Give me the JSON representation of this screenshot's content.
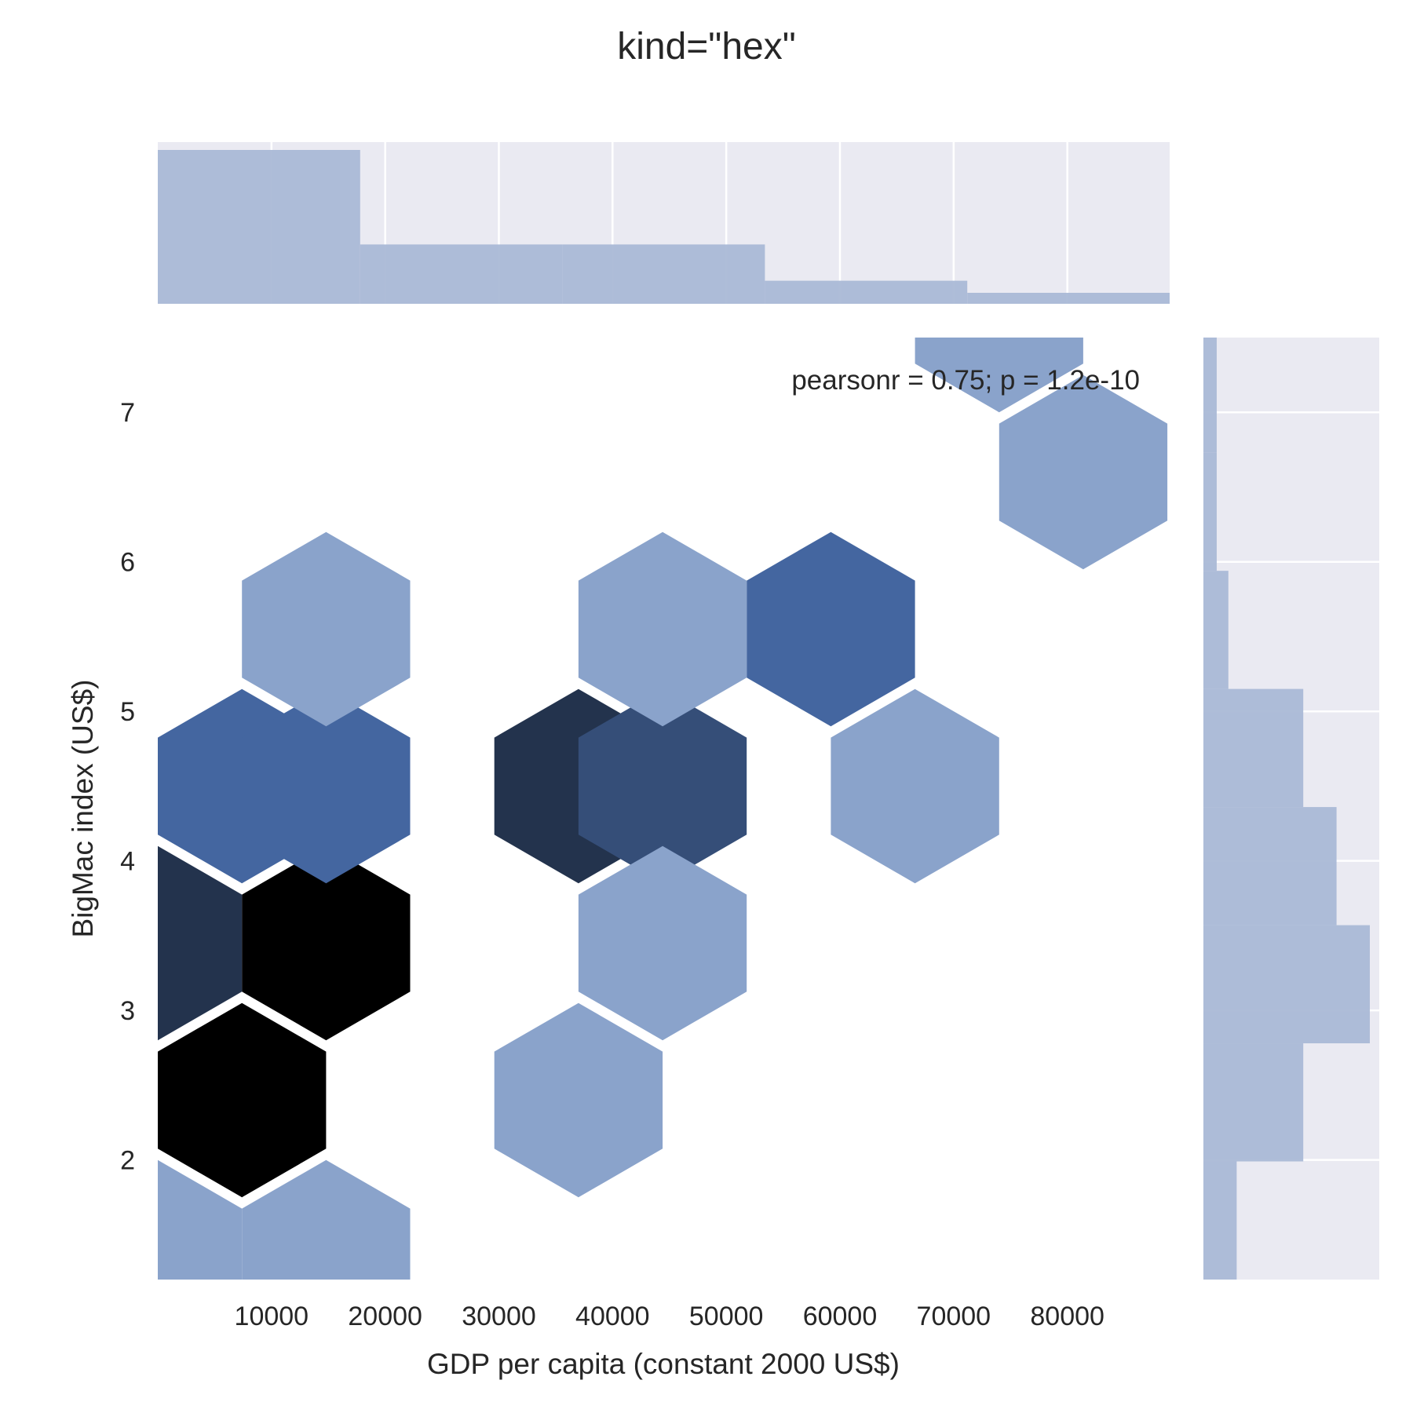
{
  "chart_data": {
    "type": "hexbin",
    "title": "kind=\"hex\"",
    "xlabel": "GDP per capita (constant 2000 US$)",
    "ylabel": "BigMac index (US$)",
    "xlim": [
      0,
      89000
    ],
    "ylim": [
      1.2,
      7.5
    ],
    "xticks": [
      10000,
      20000,
      30000,
      40000,
      50000,
      60000,
      70000,
      80000
    ],
    "yticks": [
      2,
      3,
      4,
      5,
      6,
      7
    ],
    "annotation": "pearsonr = 0.75; p = 1.2e-10",
    "grid": true,
    "hex_cells": [
      {
        "x": 7400,
        "y": 2.4,
        "count": 10
      },
      {
        "x": 14800,
        "y": 3.45,
        "count": 10
      },
      {
        "x": 0,
        "y": 3.45,
        "count": 6
      },
      {
        "x": 37000,
        "y": 4.5,
        "count": 8
      },
      {
        "x": 44400,
        "y": 4.5,
        "count": 5
      },
      {
        "x": 7400,
        "y": 4.5,
        "count": 3
      },
      {
        "x": 14800,
        "y": 4.5,
        "count": 2
      },
      {
        "x": 59200,
        "y": 5.55,
        "count": 2
      },
      {
        "x": 14800,
        "y": 5.55,
        "count": 1
      },
      {
        "x": 44400,
        "y": 5.55,
        "count": 1
      },
      {
        "x": 66600,
        "y": 4.5,
        "count": 1
      },
      {
        "x": 44400,
        "y": 3.45,
        "count": 1
      },
      {
        "x": 37000,
        "y": 2.4,
        "count": 1
      },
      {
        "x": 0,
        "y": 1.35,
        "count": 1
      },
      {
        "x": 14800,
        "y": 1.35,
        "count": 1
      },
      {
        "x": 81400,
        "y": 6.6,
        "count": 1
      },
      {
        "x": 74000,
        "y": 7.65,
        "count": 1
      }
    ],
    "x_marginal": {
      "bins": [
        0,
        17800,
        35600,
        53400,
        71200,
        89000
      ],
      "counts": [
        14,
        5.4,
        5.4,
        2.1,
        1
      ]
    },
    "y_marginal": {
      "bins": [
        1.2,
        1.99,
        2.78,
        3.57,
        4.36,
        5.15,
        5.94,
        6.73,
        7.5
      ],
      "counts": [
        2,
        6,
        10,
        8,
        6,
        1.5,
        0.8,
        0.8
      ]
    },
    "colors": {
      "hist_fill": "#aab9d6",
      "marginal_bg": "#eaeaf2",
      "grid": "#ffffff",
      "hex_scale": [
        "#d9e0ed",
        "#b0c2dd",
        "#8aa3cb",
        "#4466a0",
        "#354e78",
        "#23334d",
        "#000000"
      ]
    }
  }
}
